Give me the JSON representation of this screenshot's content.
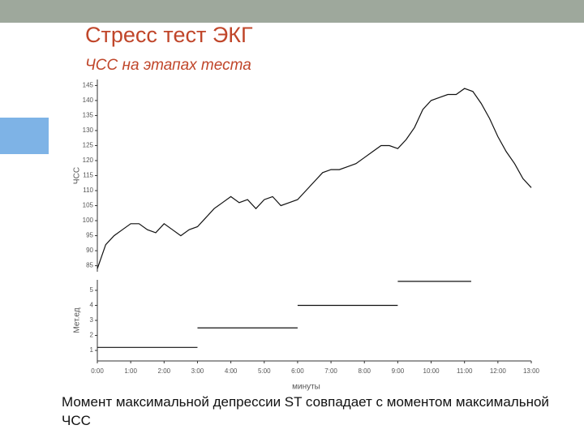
{
  "slide": {
    "title": "Стресс тест ЭКГ",
    "subtitle": "ЧСС на этапах теста",
    "caption": "Момент максимальной депрессии ST совпадает с моментом максимальной ЧСС"
  },
  "chart_data": [
    {
      "type": "line",
      "ylabel": "ЧСС",
      "color": "#111111",
      "x": [
        0,
        0.25,
        0.5,
        0.75,
        1,
        1.25,
        1.5,
        1.75,
        2,
        2.25,
        2.5,
        2.75,
        3,
        3.25,
        3.5,
        3.75,
        4,
        4.25,
        4.5,
        4.75,
        5,
        5.25,
        5.5,
        5.75,
        6,
        6.25,
        6.5,
        6.75,
        7,
        7.25,
        7.5,
        7.75,
        8,
        8.25,
        8.5,
        8.75,
        9,
        9.25,
        9.5,
        9.75,
        10,
        10.25,
        10.5,
        10.75,
        11,
        11.25,
        11.5,
        11.75,
        12,
        12.25,
        12.5,
        12.75,
        13
      ],
      "values": [
        84,
        92,
        95,
        97,
        99,
        99,
        97,
        96,
        99,
        97,
        95,
        97,
        98,
        101,
        104,
        106,
        108,
        106,
        107,
        104,
        107,
        108,
        105,
        106,
        107,
        110,
        113,
        116,
        117,
        117,
        118,
        119,
        121,
        123,
        125,
        125,
        124,
        127,
        131,
        137,
        140,
        141,
        142,
        142,
        144,
        143,
        139,
        134,
        128,
        123,
        119,
        114,
        111
      ],
      "xlim": [
        0,
        13
      ],
      "ylim": [
        83,
        147
      ],
      "yticks": [
        85,
        90,
        95,
        100,
        105,
        110,
        115,
        120,
        125,
        130,
        135,
        140,
        145
      ]
    },
    {
      "type": "step",
      "ylabel": "Мет.ед",
      "xlabel": "минуты",
      "color": "#111111",
      "x_start": [
        0,
        3,
        6,
        9
      ],
      "x_end": [
        3,
        6,
        9,
        11.2
      ],
      "values": [
        1.2,
        2.5,
        4,
        5.6
      ],
      "xlim": [
        0,
        13
      ],
      "ylim": [
        0.3,
        5.7
      ],
      "yticks": [
        1,
        2,
        3,
        4,
        5
      ],
      "xticks": [
        {
          "value": 0,
          "label": "0:00"
        },
        {
          "value": 1,
          "label": "1:00"
        },
        {
          "value": 2,
          "label": "2:00"
        },
        {
          "value": 3,
          "label": "3:00"
        },
        {
          "value": 4,
          "label": "4:00"
        },
        {
          "value": 5,
          "label": "5:00"
        },
        {
          "value": 6,
          "label": "6:00"
        },
        {
          "value": 7,
          "label": "7:00"
        },
        {
          "value": 8,
          "label": "8:00"
        },
        {
          "value": 9,
          "label": "9:00"
        },
        {
          "value": 10,
          "label": "10:00"
        },
        {
          "value": 11,
          "label": "11:00"
        },
        {
          "value": 12,
          "label": "12:00"
        },
        {
          "value": 13,
          "label": "13:00"
        }
      ]
    }
  ]
}
